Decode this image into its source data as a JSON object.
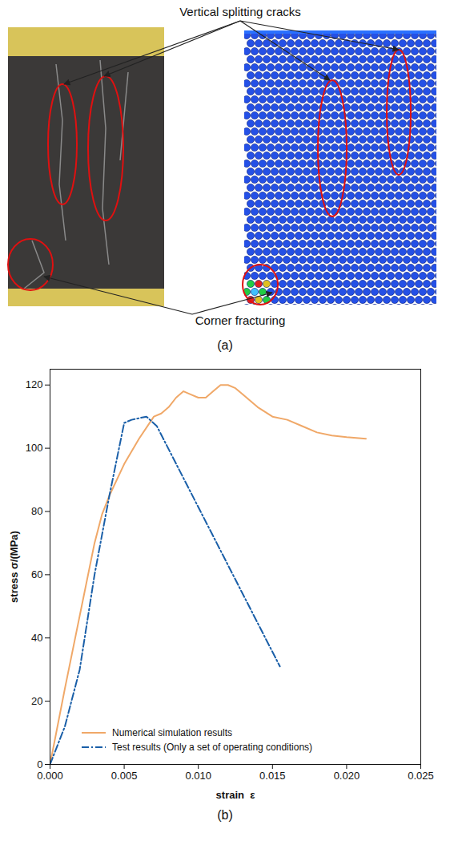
{
  "panel_a": {
    "label": "(a)",
    "annotations": [
      "Vertical splitting cracks",
      "Corner fracturing"
    ]
  },
  "chart_data": {
    "type": "line",
    "caption": "(b)",
    "x_label": "strain  ε",
    "y_label": "stress σ/(MPa)",
    "xlim": [
      0,
      0.025
    ],
    "xticks": [
      {
        "value": 0,
        "label": "0.000"
      },
      {
        "value": 0.005,
        "label": "0.005"
      },
      {
        "value": 0.01,
        "label": "0.010"
      },
      {
        "value": 0.015,
        "label": "0.015"
      },
      {
        "value": 0.02,
        "label": "0.020"
      },
      {
        "value": 0.025,
        "label": "0.025"
      }
    ],
    "ylim": [
      0,
      125
    ],
    "yticks": [
      0,
      20,
      40,
      60,
      80,
      100,
      120
    ],
    "grid": false,
    "legend": "lower left",
    "series": [
      {
        "name": "Numerical simulation results",
        "color": "#f0a868",
        "line_style": "solid",
        "x": [
          0,
          0.001,
          0.002,
          0.003,
          0.0035,
          0.004,
          0.005,
          0.006,
          0.007,
          0.0075,
          0.008,
          0.0085,
          0.009,
          0.0095,
          0.01,
          0.0105,
          0.011,
          0.0115,
          0.012,
          0.0125,
          0.013,
          0.014,
          0.015,
          0.016,
          0.017,
          0.018,
          0.019,
          0.02,
          0.0213
        ],
        "values": [
          0,
          24,
          47,
          70,
          79,
          85,
          95,
          103,
          110,
          111,
          113,
          116,
          118,
          117,
          116,
          116,
          118,
          120,
          120,
          119,
          117,
          113,
          110,
          109,
          107,
          105,
          104,
          103.5,
          103
        ]
      },
      {
        "name": "Test results  (Only a set of operating conditions)",
        "color": "#1a5fa8",
        "line_style": "dashdot",
        "x": [
          0,
          0.001,
          0.002,
          0.003,
          0.004,
          0.005,
          0.0055,
          0.0065,
          0.0072,
          0.0155
        ],
        "values": [
          0,
          12,
          30,
          60,
          85,
          108,
          109,
          110,
          107,
          31
        ]
      }
    ]
  }
}
